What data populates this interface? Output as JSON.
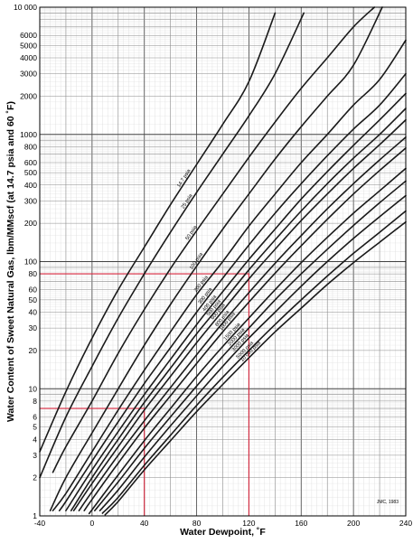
{
  "chart_data": {
    "type": "line",
    "xlabel": "Water Dewpoint, ˚F",
    "ylabel": "Water Content of Sweet Natural Gas, lbm/MMscf (at 14.7 psia and 60 ˚F)",
    "xlim": [
      -40,
      240
    ],
    "ylim": [
      1,
      10000
    ],
    "yscale": "log",
    "grid": true,
    "x_ticks": [
      "-40",
      "0",
      "40",
      "80",
      "120",
      "160",
      "200",
      "240"
    ],
    "y_ticks": [
      "1",
      "2",
      "3",
      "4",
      "5",
      "6",
      "8",
      "10",
      "20",
      "30",
      "40",
      "50",
      "60",
      "80",
      "100",
      "200",
      "300",
      "400",
      "500",
      "600",
      "800",
      "1000",
      "2000",
      "3000",
      "4000",
      "5000",
      "6000",
      "10 000"
    ],
    "credit": "JMC, 1983",
    "series": [
      {
        "name": "14.7 psia",
        "x": [
          -40,
          -20,
          0,
          20,
          40,
          60,
          80,
          100,
          120,
          140
        ],
        "y": [
          3.2,
          9.5,
          25,
          60,
          130,
          280,
          580,
          1200,
          2600,
          9000
        ]
      },
      {
        "name": "25 psia",
        "x": [
          -40,
          -20,
          0,
          20,
          40,
          60,
          80,
          100,
          120,
          140,
          162
        ],
        "y": [
          2,
          6,
          15,
          36,
          80,
          170,
          350,
          700,
          1400,
          3000,
          9000
        ]
      },
      {
        "name": "50 psia",
        "x": [
          -30,
          -20,
          0,
          20,
          40,
          60,
          80,
          100,
          120,
          140,
          160,
          180,
          200,
          216
        ],
        "y": [
          2.2,
          3.5,
          8,
          19,
          42,
          88,
          175,
          340,
          660,
          1250,
          2300,
          4000,
          7000,
          10000
        ]
      },
      {
        "name": "100 psia",
        "x": [
          -32,
          -20,
          0,
          20,
          40,
          60,
          80,
          100,
          120,
          140,
          160,
          180,
          200,
          222
        ],
        "y": [
          1.1,
          2,
          4.5,
          10,
          22,
          46,
          92,
          180,
          340,
          640,
          1150,
          2000,
          3500,
          10000
        ]
      },
      {
        "name": "200 psia",
        "x": [
          -30,
          -20,
          0,
          20,
          40,
          60,
          80,
          100,
          120,
          140,
          160,
          180,
          200,
          220,
          240
        ],
        "y": [
          1.1,
          1.5,
          3.2,
          6.8,
          14,
          28,
          55,
          100,
          190,
          340,
          600,
          1000,
          1700,
          2700,
          5500
        ]
      },
      {
        "name": "300 psia",
        "x": [
          -25,
          -20,
          0,
          20,
          40,
          60,
          80,
          100,
          120,
          140,
          160,
          180,
          200,
          220,
          240
        ],
        "y": [
          1.1,
          1.3,
          2.7,
          5.5,
          11,
          21,
          40,
          74,
          135,
          240,
          410,
          680,
          1100,
          1700,
          3000
        ]
      },
      {
        "name": "400 psia",
        "x": [
          -20,
          0,
          20,
          40,
          60,
          80,
          100,
          120,
          140,
          160,
          180,
          200,
          220,
          240
        ],
        "y": [
          1.1,
          2.3,
          4.6,
          9,
          17,
          32,
          58,
          104,
          180,
          310,
          510,
          820,
          1300,
          2100
        ]
      },
      {
        "name": "500 psia",
        "x": [
          -16,
          0,
          20,
          40,
          60,
          80,
          100,
          120,
          140,
          160,
          180,
          200,
          220,
          240
        ],
        "y": [
          1.1,
          2,
          4,
          7.8,
          14.5,
          27,
          48,
          86,
          148,
          250,
          410,
          650,
          1000,
          1600
        ]
      },
      {
        "name": "600 psia",
        "x": [
          -14,
          0,
          20,
          40,
          60,
          80,
          100,
          120,
          140,
          160,
          180,
          200,
          220,
          240
        ],
        "y": [
          1.1,
          1.8,
          3.5,
          6.8,
          12.5,
          23,
          41,
          73,
          125,
          210,
          340,
          540,
          830,
          1300
        ]
      },
      {
        "name": "800 psia",
        "x": [
          -10,
          0,
          20,
          40,
          60,
          80,
          100,
          120,
          140,
          160,
          180,
          200,
          220,
          240
        ],
        "y": [
          1.1,
          1.55,
          3,
          5.6,
          10.2,
          18.5,
          33,
          57,
          97,
          160,
          260,
          410,
          630,
          950
        ]
      },
      {
        "name": "1000 psia",
        "x": [
          -6,
          0,
          20,
          40,
          60,
          80,
          100,
          120,
          140,
          160,
          180,
          200,
          220,
          240
        ],
        "y": [
          1.1,
          1.35,
          2.6,
          4.9,
          8.8,
          15.8,
          28,
          48,
          81,
          133,
          215,
          340,
          520,
          780
        ]
      },
      {
        "name": "1500 psia",
        "x": [
          -2,
          0,
          20,
          40,
          60,
          80,
          100,
          120,
          140,
          160,
          180,
          200,
          220,
          240
        ],
        "y": [
          1.05,
          1.12,
          2.1,
          3.9,
          7,
          12.5,
          21.5,
          36,
          60,
          98,
          155,
          240,
          360,
          540
        ]
      },
      {
        "name": "2000 psia",
        "x": [
          2,
          20,
          40,
          60,
          80,
          100,
          120,
          140,
          160,
          180,
          200,
          220,
          240
        ],
        "y": [
          1.1,
          1.85,
          3.4,
          6,
          10.5,
          18,
          30,
          50,
          80,
          125,
          192,
          290,
          430
        ]
      },
      {
        "name": "3000 psia",
        "x": [
          6,
          20,
          40,
          60,
          80,
          100,
          120,
          140,
          160,
          180,
          200,
          220,
          240
        ],
        "y": [
          1.1,
          1.6,
          2.9,
          5.1,
          8.8,
          15,
          25,
          40,
          64,
          100,
          152,
          225,
          330
        ]
      },
      {
        "name": "5000 psia",
        "x": [
          8,
          20,
          40,
          60,
          80,
          100,
          120,
          140,
          160,
          180,
          200,
          220,
          240
        ],
        "y": [
          1.05,
          1.4,
          2.5,
          4.3,
          7.4,
          12.3,
          20,
          32,
          50,
          77,
          116,
          170,
          250
        ]
      },
      {
        "name": "10 000 psia",
        "x": [
          10,
          20,
          40,
          60,
          80,
          100,
          120,
          140,
          160,
          180,
          200,
          220,
          240
        ],
        "y": [
          1.02,
          1.3,
          2.3,
          3.9,
          6.6,
          10.8,
          17.5,
          28,
          43,
          66,
          98,
          142,
          205
        ]
      }
    ],
    "reference_lines": [
      {
        "x": [
          -40,
          40,
          40
        ],
        "y": [
          7,
          7,
          1
        ]
      },
      {
        "x": [
          -40,
          120,
          120
        ],
        "y": [
          80,
          80,
          1
        ]
      }
    ]
  }
}
